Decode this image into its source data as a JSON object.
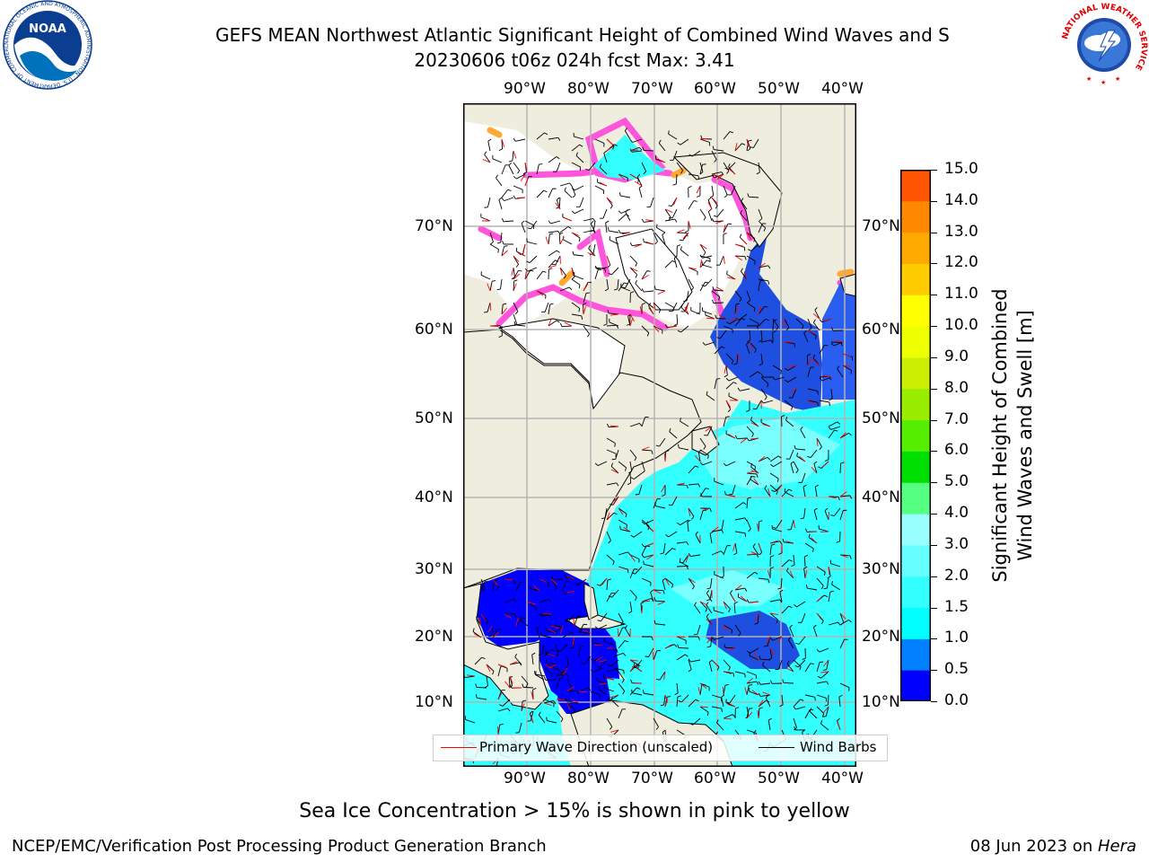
{
  "title": {
    "line1": "GEFS MEAN Northwest Atlantic Significant Height of Combined Wind Waves and S",
    "line2": "20230606 t06z 024h fcst   Max: 3.41"
  },
  "logos": {
    "noaa": {
      "name": "noaa-logo",
      "text": "NOAA",
      "ring_text": "NATIONAL OCEANIC AND ATMOSPHERIC ADMINISTRATION · U.S. DEPARTMENT OF COMMERCE"
    },
    "nws": {
      "name": "nws-logo",
      "ring_text": "NATIONAL WEATHER SERVICE"
    }
  },
  "map": {
    "lon_labels": [
      "90°W",
      "80°W",
      "70°W",
      "60°W",
      "50°W",
      "40°W"
    ],
    "lat_labels": [
      "70°N",
      "60°N",
      "50°N",
      "40°N",
      "30°N",
      "20°N",
      "10°N"
    ],
    "colors": {
      "land": "#efedde",
      "ice_free_land": "#ffffff",
      "wave_cyan": "#33ffff",
      "wave_light": "#99ffff",
      "wave_blue": "#0000ff",
      "wave_midblue": "#1f4fe0",
      "ice_pink": "#ff55dd",
      "ice_orange": "#ffaa33",
      "grid": "#b3b3b3"
    }
  },
  "legend": {
    "wave_direction": "Primary Wave Direction (unscaled)",
    "wind_barbs": "Wind Barbs",
    "wave_direction_color": "#ff0000",
    "wind_barbs_color": "#000000"
  },
  "colorbar": {
    "ticks": [
      "15.0",
      "14.0",
      "13.0",
      "12.0",
      "11.0",
      "10.0",
      "9.0",
      "8.0",
      "7.0",
      "6.0",
      "5.0",
      "4.0",
      "3.0",
      "2.0",
      "1.5",
      "1.0",
      "0.5",
      "0.0"
    ],
    "colors_bottom_to_top": [
      "#0000ff",
      "#0080ff",
      "#00ffff",
      "#33ffff",
      "#66ffff",
      "#99ffff",
      "#55ff80",
      "#00e000",
      "#55ee00",
      "#99ee00",
      "#ccee00",
      "#eeff00",
      "#ffff00",
      "#ffcc00",
      "#ffaa00",
      "#ff8800",
      "#ff5500",
      "#ff2200",
      "#ff0000"
    ],
    "label_line1": "Significant Height of Combined",
    "label_line2": "Wind Waves and Swell [m]"
  },
  "subnote": "Sea Ice Concentration > 15% is shown in pink to yellow",
  "footer": {
    "left": "NCEP/EMC/Verification Post Processing Product Generation Branch",
    "right_date": "08 Jun 2023 on ",
    "right_host": "Hera"
  }
}
